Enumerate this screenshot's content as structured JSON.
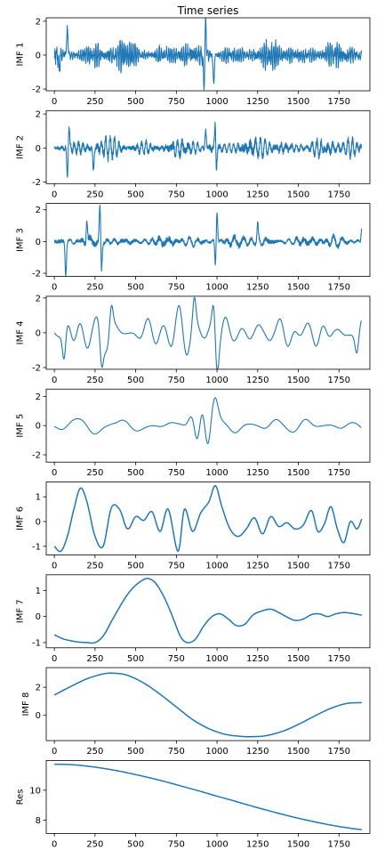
{
  "chart_data": [
    {
      "type": "line",
      "title": "Time series",
      "ylabel": "IMF 1",
      "ylim": [
        -2.1,
        2.2
      ],
      "yticks": [
        -2,
        0,
        2
      ],
      "xlim": [
        -50,
        1940
      ],
      "xticks": [
        0,
        250,
        500,
        750,
        1000,
        1250,
        1500,
        1750
      ],
      "series": [
        {
          "kind": "noise",
          "n": 1890,
          "amp": 0.28,
          "freq": 0.45,
          "seed": 1,
          "spikes": [
            [
              920,
              -1.9
            ],
            [
              930,
              1.95
            ],
            [
              980,
              -1.6
            ],
            [
              80,
              1.6
            ],
            [
              30,
              -0.8
            ]
          ]
        }
      ],
      "color": "#1f77b4"
    },
    {
      "type": "line",
      "ylabel": "IMF 2",
      "ylim": [
        -2.1,
        2.2
      ],
      "yticks": [
        -2,
        0,
        2
      ],
      "xlim": [
        -50,
        1940
      ],
      "xticks": [
        0,
        250,
        500,
        750,
        1000,
        1250,
        1500,
        1750
      ],
      "series": [
        {
          "kind": "noise",
          "n": 1890,
          "amp": 0.22,
          "freq": 0.22,
          "seed": 2,
          "spikes": [
            [
              990,
              2.0
            ],
            [
              995,
              -1.75
            ],
            [
              80,
              -1.75
            ],
            [
              90,
              1.3
            ],
            [
              240,
              -1.3
            ],
            [
              930,
              1.05
            ]
          ]
        }
      ],
      "color": "#1f77b4"
    },
    {
      "type": "line",
      "ylabel": "IMF 3",
      "ylim": [
        -2.2,
        2.4
      ],
      "yticks": [
        -2,
        0,
        2
      ],
      "xlim": [
        -50,
        1940
      ],
      "xticks": [
        0,
        250,
        500,
        750,
        1000,
        1250,
        1500,
        1750
      ],
      "series": [
        {
          "kind": "noise",
          "n": 1890,
          "amp": 0.15,
          "freq": 0.12,
          "seed": 3,
          "spikes": [
            [
              280,
              2.25
            ],
            [
              290,
              -1.9
            ],
            [
              70,
              -2.1
            ],
            [
              200,
              1.6
            ],
            [
              1000,
              1.95
            ],
            [
              990,
              -1.5
            ],
            [
              1250,
              1.0
            ],
            [
              1890,
              0.95
            ]
          ]
        }
      ],
      "color": "#1f77b4"
    },
    {
      "type": "line",
      "ylabel": "IMF 4",
      "ylim": [
        -2.1,
        2.1
      ],
      "yticks": [
        -2,
        0,
        2
      ],
      "xlim": [
        -50,
        1940
      ],
      "xticks": [
        0,
        250,
        500,
        750,
        1000,
        1250,
        1500,
        1750
      ],
      "series": [
        {
          "kind": "wave",
          "n": 1890,
          "amp": 0.6,
          "freq": 0.06,
          "seed": 4,
          "spikes": [
            [
              980,
              1.95
            ],
            [
              1000,
              -1.8
            ],
            [
              60,
              -1.95
            ],
            [
              290,
              -1.95
            ],
            [
              350,
              1.6
            ],
            [
              860,
              1.75
            ],
            [
              1860,
              -1.1
            ]
          ]
        }
      ],
      "color": "#1f77b4"
    },
    {
      "type": "line",
      "ylabel": "IMF 5",
      "ylim": [
        -2.5,
        2.5
      ],
      "yticks": [
        -2,
        0,
        2
      ],
      "xlim": [
        -50,
        1940
      ],
      "xticks": [
        0,
        250,
        500,
        750,
        1000,
        1250,
        1500,
        1750
      ],
      "series": [
        {
          "kind": "wave",
          "n": 1890,
          "amp": 0.55,
          "freq": 0.03,
          "seed": 5,
          "spikes": [
            [
              910,
              2.3
            ],
            [
              940,
              -2.3
            ],
            [
              985,
              1.95
            ],
            [
              880,
              -1.7
            ],
            [
              850,
              1.3
            ]
          ]
        }
      ],
      "color": "#1f77b4"
    },
    {
      "type": "line",
      "ylabel": "IMF 6",
      "ylim": [
        -1.35,
        1.6
      ],
      "yticks": [
        -1,
        0,
        1
      ],
      "xlim": [
        -50,
        1940
      ],
      "xticks": [
        0,
        250,
        500,
        750,
        1000,
        1250,
        1500,
        1750
      ],
      "series": [
        {
          "kind": "points",
          "x": [
            0,
            40,
            80,
            120,
            160,
            200,
            250,
            300,
            350,
            400,
            450,
            500,
            550,
            600,
            650,
            700,
            760,
            800,
            850,
            900,
            950,
            990,
            1030,
            1080,
            1130,
            1180,
            1230,
            1280,
            1330,
            1380,
            1430,
            1480,
            1530,
            1580,
            1620,
            1660,
            1700,
            1740,
            1780,
            1820,
            1860,
            1890
          ],
          "y": [
            -1.0,
            -1.2,
            -0.6,
            0.5,
            1.35,
            0.8,
            -0.6,
            -1.0,
            0.55,
            0.5,
            -0.3,
            0.2,
            0.05,
            0.4,
            -0.4,
            0.5,
            -1.2,
            0.5,
            -0.4,
            0.35,
            0.8,
            1.45,
            0.6,
            -0.3,
            -0.6,
            -0.3,
            0.15,
            -0.5,
            0.2,
            -0.2,
            -0.05,
            -0.3,
            -0.15,
            0.45,
            -0.4,
            -0.1,
            0.6,
            -0.3,
            -0.85,
            0.0,
            -0.3,
            0.1
          ]
        }
      ],
      "color": "#1f77b4"
    },
    {
      "type": "line",
      "ylabel": "IMF 7",
      "ylim": [
        -1.2,
        1.6
      ],
      "yticks": [
        -1,
        0,
        1
      ],
      "xlim": [
        -50,
        1940
      ],
      "xticks": [
        0,
        250,
        500,
        750,
        1000,
        1250,
        1500,
        1750
      ],
      "series": [
        {
          "kind": "points",
          "x": [
            0,
            50,
            100,
            150,
            200,
            250,
            300,
            350,
            400,
            450,
            500,
            550,
            580,
            620,
            670,
            720,
            770,
            800,
            830,
            870,
            920,
            970,
            1020,
            1070,
            1120,
            1170,
            1220,
            1270,
            1330,
            1380,
            1430,
            1480,
            1530,
            1580,
            1630,
            1680,
            1730,
            1780,
            1830,
            1890
          ],
          "y": [
            -0.7,
            -0.85,
            -0.93,
            -0.98,
            -1.0,
            -1.0,
            -0.75,
            -0.2,
            0.35,
            0.85,
            1.2,
            1.42,
            1.45,
            1.3,
            0.8,
            0.1,
            -0.7,
            -0.95,
            -1.0,
            -0.85,
            -0.35,
            0.0,
            0.1,
            -0.1,
            -0.35,
            -0.3,
            0.05,
            0.2,
            0.28,
            0.15,
            -0.02,
            -0.15,
            -0.1,
            0.07,
            0.1,
            0.0,
            0.1,
            0.15,
            0.12,
            0.05
          ]
        }
      ],
      "color": "#1f77b4"
    },
    {
      "type": "line",
      "ylabel": "IMF 8",
      "ylim": [
        -1.8,
        3.4
      ],
      "yticks": [
        0,
        2
      ],
      "xlim": [
        -50,
        1940
      ],
      "xticks": [
        0,
        250,
        500,
        750,
        1000,
        1250,
        1500,
        1750
      ],
      "series": [
        {
          "kind": "points",
          "x": [
            0,
            100,
            200,
            300,
            370,
            450,
            550,
            650,
            750,
            850,
            950,
            1050,
            1150,
            1220,
            1300,
            1400,
            1500,
            1600,
            1700,
            1800,
            1890
          ],
          "y": [
            1.45,
            2.05,
            2.6,
            2.95,
            3.0,
            2.85,
            2.3,
            1.5,
            0.6,
            -0.3,
            -0.95,
            -1.35,
            -1.5,
            -1.52,
            -1.45,
            -1.15,
            -0.65,
            -0.05,
            0.5,
            0.85,
            0.9
          ]
        }
      ],
      "color": "#1f77b4"
    },
    {
      "type": "line",
      "ylabel": "Res",
      "ylim": [
        7.1,
        12.0
      ],
      "yticks": [
        8,
        10
      ],
      "xlim": [
        -50,
        1940
      ],
      "xticks": [
        0,
        250,
        500,
        750,
        1000,
        1250,
        1500,
        1750
      ],
      "series": [
        {
          "kind": "points",
          "x": [
            0,
            100,
            200,
            300,
            400,
            500,
            600,
            700,
            800,
            900,
            1000,
            1100,
            1200,
            1300,
            1400,
            1500,
            1600,
            1700,
            1800,
            1890
          ],
          "y": [
            11.75,
            11.72,
            11.62,
            11.47,
            11.28,
            11.05,
            10.8,
            10.52,
            10.22,
            9.92,
            9.6,
            9.3,
            8.98,
            8.68,
            8.39,
            8.12,
            7.88,
            7.66,
            7.48,
            7.35
          ]
        }
      ],
      "color": "#1f77b4"
    }
  ]
}
